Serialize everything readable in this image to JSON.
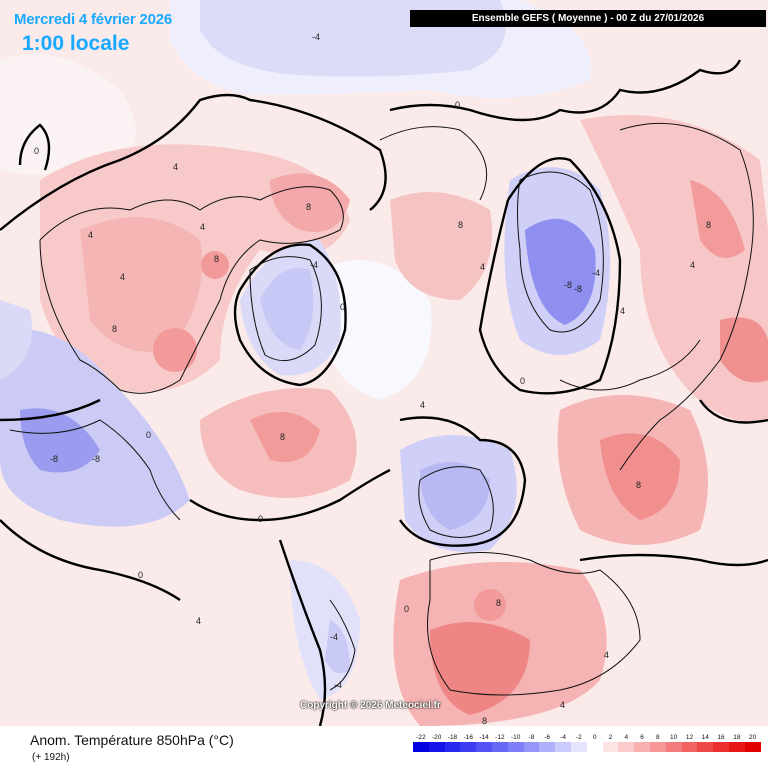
{
  "header": {
    "date": "Mercredi 4 février 2026",
    "time": "1:00 locale",
    "model_run": "Ensemble GEFS  ( Moyenne )  -  00 Z du 27/01/2026"
  },
  "copyright": "Copyright © 2026 Meteociel.fr",
  "footer": {
    "title": "Anom. Température 850hPa (°C)",
    "subtitle": "(+ 192h)"
  },
  "legend": {
    "labels": [
      "-22",
      "-20",
      "-18",
      "-16",
      "-14",
      "-12",
      "-10",
      "-8",
      "-6",
      "-4",
      "-2",
      "0",
      "2",
      "4",
      "6",
      "8",
      "10",
      "12",
      "14",
      "16",
      "18",
      "20"
    ],
    "colors": [
      "#0000e0",
      "#1414e8",
      "#2828ee",
      "#3c3cf2",
      "#5252f5",
      "#6868f6",
      "#7e7ef8",
      "#9696fa",
      "#b0b0fb",
      "#cacafc",
      "#e4e4fe",
      "#ffffff",
      "#fde4e4",
      "#fbcaca",
      "#f9b0b0",
      "#f79696",
      "#f47c7c",
      "#f26262",
      "#ef4848",
      "#ec2e2e",
      "#e91818",
      "#e00000"
    ]
  },
  "map": {
    "contour_labels": [
      "-8",
      "-8",
      "-8",
      "-8",
      "-4",
      "-4",
      "-4",
      "-4",
      "-4",
      "0",
      "0",
      "0",
      "0",
      "0",
      "0",
      "0",
      "0",
      "4",
      "4",
      "4",
      "4",
      "4",
      "4",
      "4",
      "4",
      "4",
      "4",
      "4",
      "8",
      "8",
      "8",
      "8",
      "8",
      "8",
      "8",
      "8",
      "8"
    ]
  }
}
